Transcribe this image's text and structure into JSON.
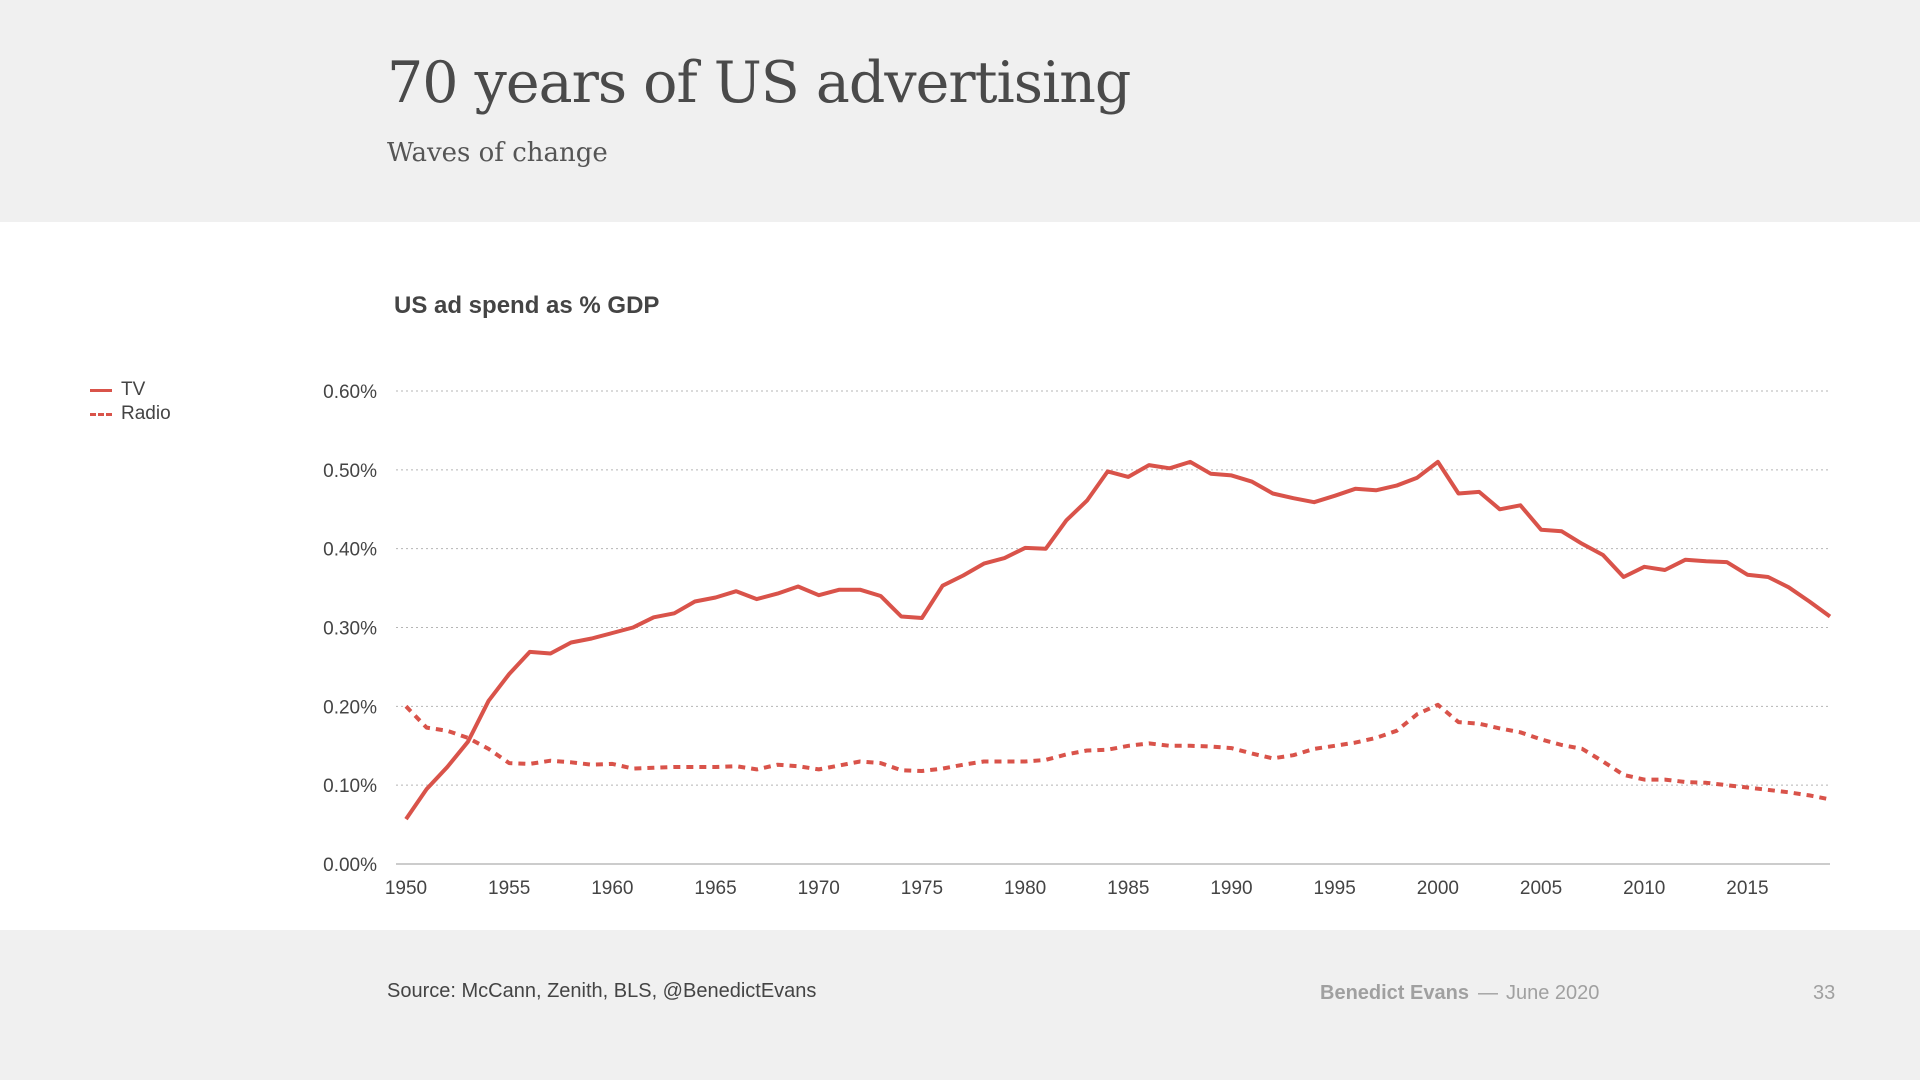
{
  "header": {
    "title": "70 years of US advertising",
    "subtitle": "Waves of change"
  },
  "footer": {
    "source": "Source: McCann, Zenith, BLS, @BenedictEvans",
    "author": "Benedict Evans",
    "separator": "—",
    "date": "June 2020",
    "page_number": "33"
  },
  "colors": {
    "series": "#d9534a",
    "grid": "#b5b5b5",
    "axis_text": "#444444"
  },
  "chart_data": {
    "type": "line",
    "title": "US ad spend as % GDP",
    "xlabel": "",
    "ylabel": "",
    "xlim": [
      1950,
      2019
    ],
    "ylim": [
      0,
      0.6
    ],
    "yticks": [
      "0.00%",
      "0.10%",
      "0.20%",
      "0.30%",
      "0.40%",
      "0.50%",
      "0.60%"
    ],
    "xticks": [
      "1950",
      "1955",
      "1960",
      "1965",
      "1970",
      "1975",
      "1980",
      "1985",
      "1990",
      "1995",
      "2000",
      "2005",
      "2010",
      "2015"
    ],
    "grid": true,
    "legend_position": "left",
    "x": [
      1950,
      1951,
      1952,
      1953,
      1954,
      1955,
      1956,
      1957,
      1958,
      1959,
      1960,
      1961,
      1962,
      1963,
      1964,
      1965,
      1966,
      1967,
      1968,
      1969,
      1970,
      1971,
      1972,
      1973,
      1974,
      1975,
      1976,
      1977,
      1978,
      1979,
      1980,
      1981,
      1982,
      1983,
      1984,
      1985,
      1986,
      1987,
      1988,
      1989,
      1990,
      1991,
      1992,
      1993,
      1994,
      1995,
      1996,
      1997,
      1998,
      1999,
      2000,
      2001,
      2002,
      2003,
      2004,
      2005,
      2006,
      2007,
      2008,
      2009,
      2010,
      2011,
      2012,
      2013,
      2014,
      2015,
      2016,
      2017,
      2018,
      2019
    ],
    "series": [
      {
        "name": "TV",
        "style": "solid",
        "values": [
          0.057,
          0.095,
          0.123,
          0.155,
          0.207,
          0.241,
          0.269,
          0.267,
          0.281,
          0.286,
          0.293,
          0.3,
          0.313,
          0.318,
          0.333,
          0.338,
          0.346,
          0.336,
          0.343,
          0.352,
          0.341,
          0.348,
          0.348,
          0.34,
          0.314,
          0.312,
          0.353,
          0.366,
          0.381,
          0.388,
          0.401,
          0.4,
          0.436,
          0.461,
          0.498,
          0.491,
          0.506,
          0.502,
          0.51,
          0.495,
          0.493,
          0.485,
          0.47,
          0.464,
          0.459,
          0.467,
          0.476,
          0.474,
          0.48,
          0.49,
          0.51,
          0.47,
          0.472,
          0.45,
          0.455,
          0.424,
          0.422,
          0.406,
          0.392,
          0.364,
          0.377,
          0.373,
          0.386,
          0.384,
          0.383,
          0.367,
          0.364,
          0.351,
          0.333,
          0.314
        ]
      },
      {
        "name": "Radio",
        "style": "dashed",
        "values": [
          0.2,
          0.173,
          0.169,
          0.16,
          0.146,
          0.128,
          0.127,
          0.131,
          0.129,
          0.126,
          0.127,
          0.121,
          0.122,
          0.123,
          0.123,
          0.123,
          0.124,
          0.12,
          0.126,
          0.124,
          0.12,
          0.125,
          0.13,
          0.128,
          0.119,
          0.118,
          0.121,
          0.126,
          0.13,
          0.13,
          0.13,
          0.132,
          0.139,
          0.144,
          0.145,
          0.15,
          0.153,
          0.15,
          0.15,
          0.149,
          0.147,
          0.14,
          0.134,
          0.138,
          0.146,
          0.15,
          0.154,
          0.16,
          0.169,
          0.19,
          0.202,
          0.18,
          0.178,
          0.172,
          0.167,
          0.158,
          0.151,
          0.146,
          0.13,
          0.113,
          0.107,
          0.107,
          0.104,
          0.103,
          0.1,
          0.097,
          0.094,
          0.091,
          0.087,
          0.082
        ]
      }
    ]
  }
}
